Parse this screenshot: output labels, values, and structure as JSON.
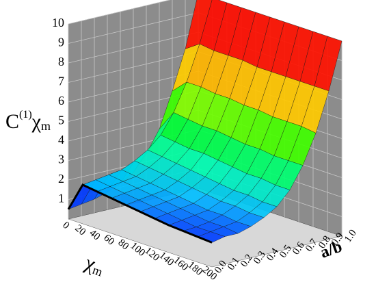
{
  "chart_data": {
    "type": "surface",
    "x": [
      0,
      20,
      40,
      60,
      80,
      100,
      120,
      140,
      160,
      180,
      200
    ],
    "y": [
      0,
      0.1,
      0.2,
      0.3,
      0.4,
      0.5,
      0.6,
      0.7,
      0.8,
      0.9,
      1.0
    ],
    "z": [
      [
        0.5,
        0.6,
        0.7,
        0.9,
        1.2,
        1.6,
        2.4,
        3.5,
        5.3,
        7.3,
        10.0
      ],
      [
        2.0,
        2.1,
        2.2,
        2.3,
        2.6,
        3.0,
        3.6,
        4.6,
        6.0,
        7.8,
        10.0
      ],
      [
        1.9,
        2.0,
        2.1,
        2.2,
        2.5,
        2.9,
        3.5,
        4.5,
        6.0,
        7.7,
        10.0
      ],
      [
        1.8,
        1.9,
        2.0,
        2.1,
        2.4,
        2.8,
        3.4,
        4.4,
        5.9,
        7.7,
        10.0
      ],
      [
        1.7,
        1.8,
        1.9,
        2.0,
        2.3,
        2.7,
        3.4,
        4.4,
        5.9,
        7.7,
        10.0
      ],
      [
        1.6,
        1.7,
        1.8,
        1.9,
        2.2,
        2.6,
        3.3,
        4.3,
        5.8,
        7.6,
        10.0
      ],
      [
        1.5,
        1.6,
        1.7,
        1.8,
        2.1,
        2.5,
        3.2,
        4.2,
        5.8,
        7.6,
        10.0
      ],
      [
        1.4,
        1.5,
        1.6,
        1.7,
        2.0,
        2.4,
        3.1,
        4.2,
        5.7,
        7.6,
        10.0
      ],
      [
        1.35,
        1.4,
        1.5,
        1.7,
        2.0,
        2.4,
        3.1,
        4.1,
        5.7,
        7.6,
        10.0
      ],
      [
        1.3,
        1.4,
        1.5,
        1.6,
        1.9,
        2.3,
        3.0,
        4.1,
        5.7,
        7.6,
        10.0
      ],
      [
        1.25,
        1.4,
        1.4,
        1.6,
        1.9,
        2.3,
        3.0,
        4.1,
        5.6,
        7.6,
        10.0
      ]
    ],
    "xlim": [
      0,
      200
    ],
    "ylim": [
      0,
      1.0
    ],
    "zlim": [
      0,
      10
    ],
    "xticks": [
      0,
      20,
      40,
      60,
      80,
      100,
      120,
      140,
      160,
      180,
      200
    ],
    "yticks": [
      {
        "value": 0,
        "label": "0.0"
      },
      0.1,
      0.2,
      0.3,
      0.4,
      0.5,
      0.6,
      0.7,
      0.8,
      0.9,
      {
        "value": 1,
        "label": "1.0"
      }
    ],
    "zticks": [
      1,
      2,
      3,
      4,
      5,
      6,
      7,
      8,
      9,
      10
    ],
    "xlabel": {
      "main": "χ",
      "sub": "m"
    },
    "ylabel": "a/b",
    "zlabel": {
      "base": "C",
      "sup": "(1)",
      "main": "χ",
      "sub": "m"
    },
    "grid": true,
    "wall_color": "#8c8c8c",
    "edge_color": "#000000"
  }
}
